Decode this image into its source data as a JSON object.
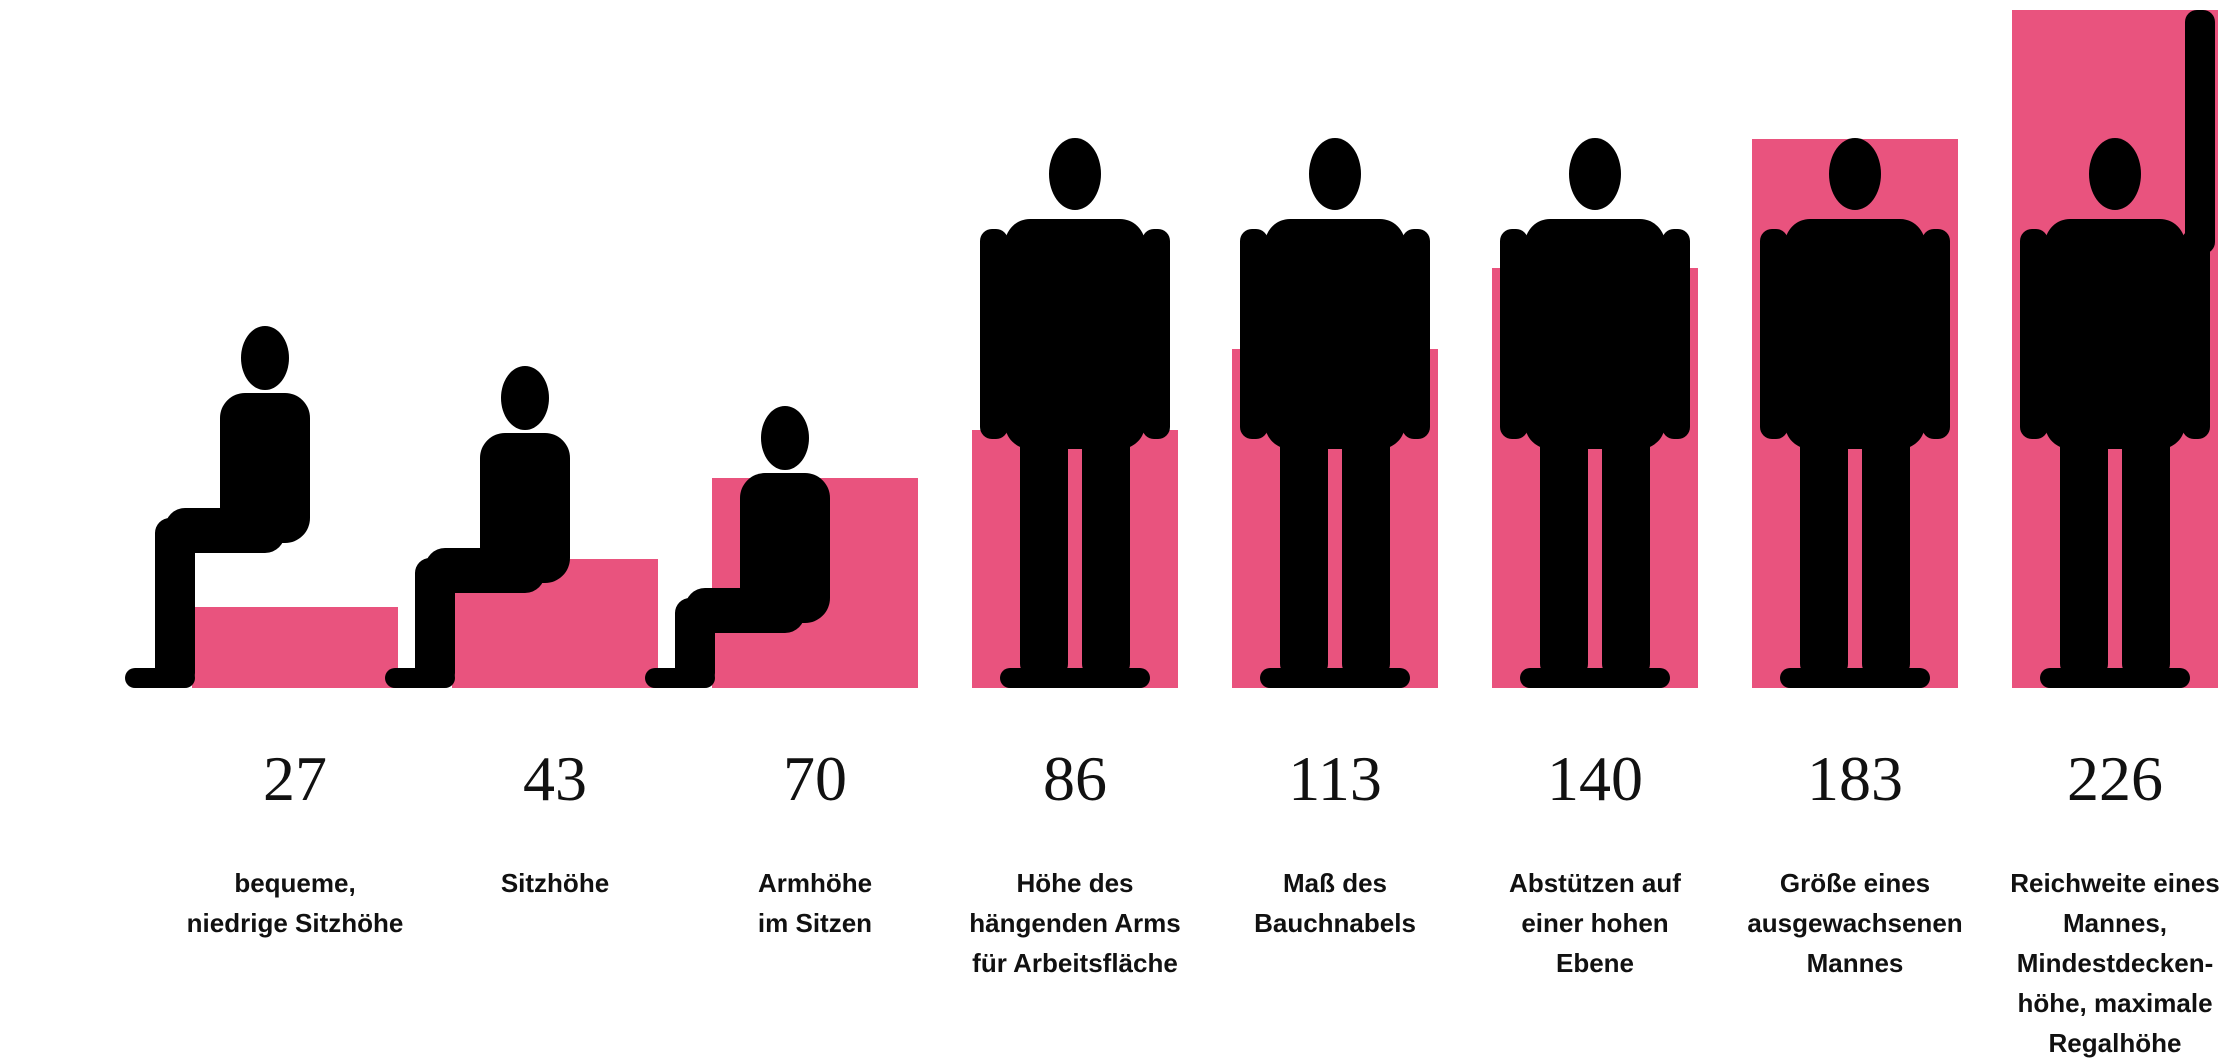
{
  "chart_data": {
    "type": "bar",
    "categories": [
      [
        "bequeme,",
        "niedrige Sitzhöhe"
      ],
      [
        "Sitzhöhe"
      ],
      [
        "Armhöhe",
        "im Sitzen"
      ],
      [
        "Höhe des",
        "hängenden Arms",
        "für Arbeitsfläche"
      ],
      [
        "Maß des",
        "Bauchnabels"
      ],
      [
        "Abstützen auf",
        "einer hohen",
        "Ebene"
      ],
      [
        "Größe eines",
        "ausgewachsenen",
        "Mannes"
      ],
      [
        "Reichweite eines",
        "Mannes,",
        "Mindestdecken-",
        "höhe, maximale",
        "Regalhöhe"
      ]
    ],
    "values": [
      27,
      43,
      70,
      86,
      113,
      140,
      183,
      226
    ],
    "color": "#e9537e"
  }
}
